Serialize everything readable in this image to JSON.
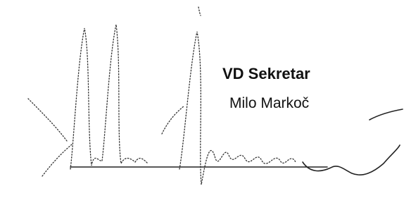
{
  "signature_block": {
    "title": "VD Sekretar",
    "name": "Milo Markoč"
  }
}
